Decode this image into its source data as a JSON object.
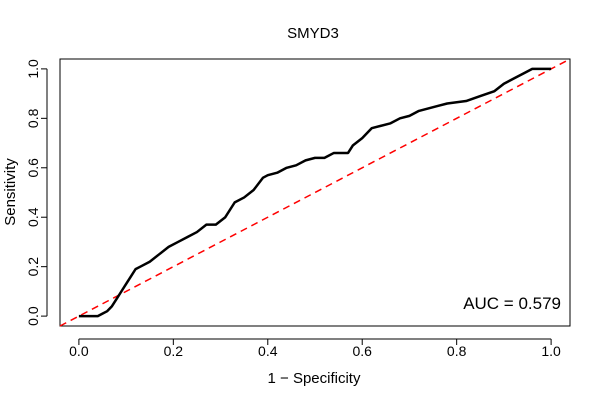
{
  "chart_data": {
    "type": "line",
    "title": "SMYD3",
    "xlabel": "1 − Specificity",
    "ylabel": "Sensitivity",
    "xlim": [
      -0.04,
      1.04
    ],
    "ylim": [
      -0.04,
      1.04
    ],
    "x_ticks": [
      0.0,
      0.2,
      0.4,
      0.6,
      0.8,
      1.0
    ],
    "x_tick_labels": [
      "0.0",
      "0.2",
      "0.4",
      "0.6",
      "0.8",
      "1.0"
    ],
    "y_ticks": [
      0.0,
      0.2,
      0.4,
      0.6,
      0.8,
      1.0
    ],
    "y_tick_labels": [
      "0.0",
      "0.2",
      "0.4",
      "0.6",
      "0.8",
      "1.0"
    ],
    "grid": false,
    "annotation": "AUC = 0.579",
    "series": [
      {
        "color": "#000000",
        "style": "solid",
        "points": [
          [
            0.0,
            0.0
          ],
          [
            0.04,
            0.0
          ],
          [
            0.05,
            0.01
          ],
          [
            0.06,
            0.02
          ],
          [
            0.07,
            0.04
          ],
          [
            0.08,
            0.07
          ],
          [
            0.09,
            0.1
          ],
          [
            0.1,
            0.13
          ],
          [
            0.11,
            0.16
          ],
          [
            0.12,
            0.19
          ],
          [
            0.13,
            0.2
          ],
          [
            0.15,
            0.22
          ],
          [
            0.17,
            0.25
          ],
          [
            0.19,
            0.28
          ],
          [
            0.21,
            0.3
          ],
          [
            0.23,
            0.32
          ],
          [
            0.25,
            0.34
          ],
          [
            0.27,
            0.37
          ],
          [
            0.29,
            0.37
          ],
          [
            0.31,
            0.4
          ],
          [
            0.33,
            0.46
          ],
          [
            0.35,
            0.48
          ],
          [
            0.37,
            0.51
          ],
          [
            0.39,
            0.56
          ],
          [
            0.4,
            0.57
          ],
          [
            0.42,
            0.58
          ],
          [
            0.44,
            0.6
          ],
          [
            0.46,
            0.61
          ],
          [
            0.48,
            0.63
          ],
          [
            0.5,
            0.64
          ],
          [
            0.52,
            0.64
          ],
          [
            0.54,
            0.66
          ],
          [
            0.57,
            0.66
          ],
          [
            0.58,
            0.69
          ],
          [
            0.6,
            0.72
          ],
          [
            0.62,
            0.76
          ],
          [
            0.64,
            0.77
          ],
          [
            0.66,
            0.78
          ],
          [
            0.68,
            0.8
          ],
          [
            0.7,
            0.81
          ],
          [
            0.72,
            0.83
          ],
          [
            0.74,
            0.84
          ],
          [
            0.76,
            0.85
          ],
          [
            0.78,
            0.86
          ],
          [
            0.82,
            0.87
          ],
          [
            0.85,
            0.89
          ],
          [
            0.88,
            0.91
          ],
          [
            0.9,
            0.94
          ],
          [
            0.92,
            0.96
          ],
          [
            0.95,
            0.99
          ],
          [
            0.96,
            1.0
          ],
          [
            1.0,
            1.0
          ]
        ]
      },
      {
        "color": "#ff0000",
        "style": "dashed",
        "points": [
          [
            -0.04,
            -0.04
          ],
          [
            1.04,
            1.04
          ]
        ]
      }
    ]
  }
}
